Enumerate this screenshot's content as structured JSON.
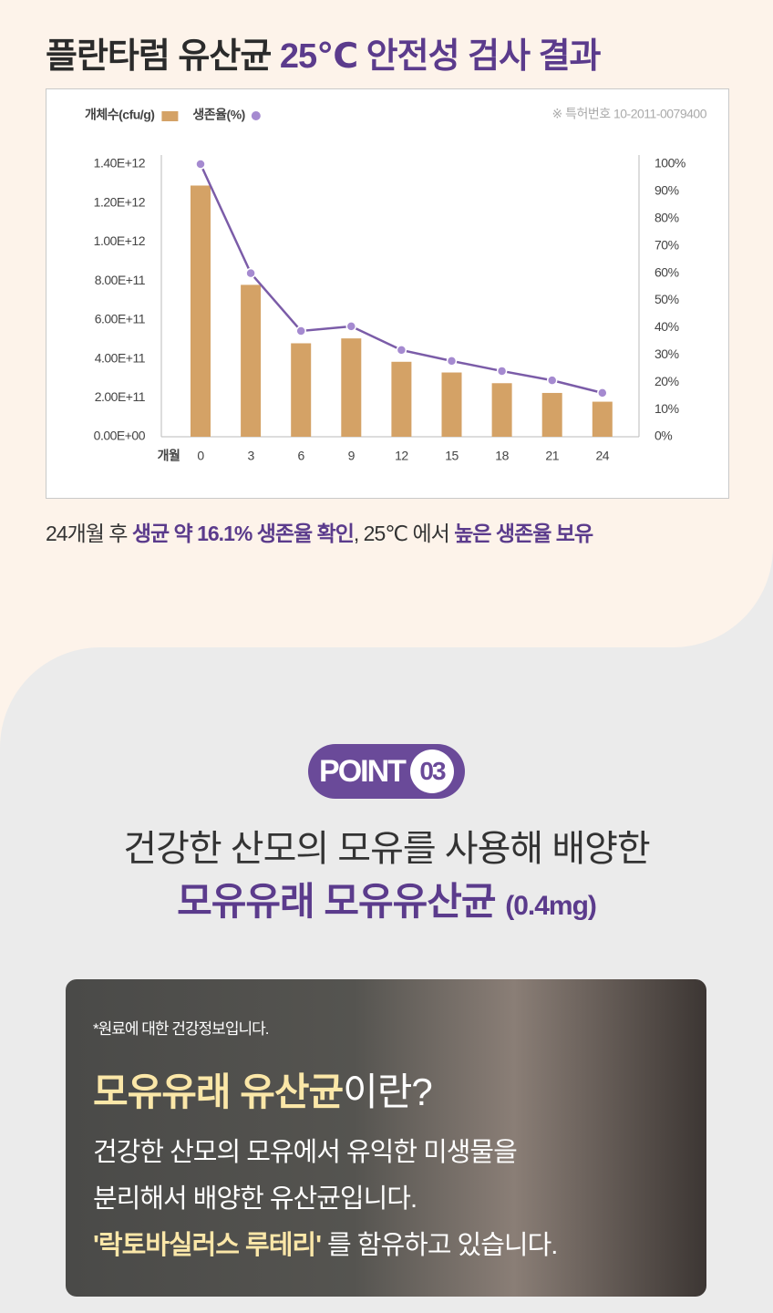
{
  "header": {
    "title_plain": "플란타럼 유산균 ",
    "title_highlight": "25℃ 안전성 검사 결과"
  },
  "chart_data": {
    "type": "bar",
    "note": "※ 특허번호 10-2011-0079400",
    "xlabel": "개월",
    "categories": [
      "0",
      "3",
      "6",
      "9",
      "12",
      "15",
      "18",
      "21",
      "24"
    ],
    "series": [
      {
        "name": "개체수(cfu/g)",
        "type": "bar",
        "color": "#d4a266",
        "values": [
          1290000000000.0,
          780000000000.0,
          480000000000.0,
          505000000000.0,
          385000000000.0,
          330000000000.0,
          275000000000.0,
          225000000000.0,
          180000000000.0
        ]
      },
      {
        "name": "생존율(%)",
        "type": "line",
        "axis": "y2",
        "color": "#7b5ca8",
        "values": [
          100,
          60,
          38.8,
          40.5,
          31.8,
          27.8,
          24.1,
          20.7,
          16.1
        ]
      }
    ],
    "ylim": [
      0,
      1400000000000.0
    ],
    "yticks": [
      {
        "value": 0,
        "label": "0.00E+00"
      },
      {
        "value": 200000000000.0,
        "label": "2.00E+11"
      },
      {
        "value": 400000000000.0,
        "label": "4.00E+11"
      },
      {
        "value": 600000000000.0,
        "label": "6.00E+11"
      },
      {
        "value": 800000000000.0,
        "label": "8.00E+11"
      },
      {
        "value": 1000000000000.0,
        "label": "1.00E+12"
      },
      {
        "value": 1200000000000.0,
        "label": "1.20E+12"
      },
      {
        "value": 1400000000000.0,
        "label": "1.40E+12"
      }
    ],
    "y2lim": [
      0,
      100
    ],
    "y2ticks": [
      {
        "value": 0,
        "label": "0%"
      },
      {
        "value": 10,
        "label": "10%"
      },
      {
        "value": 20,
        "label": "20%"
      },
      {
        "value": 30,
        "label": "30%"
      },
      {
        "value": 40,
        "label": "40%"
      },
      {
        "value": 50,
        "label": "50%"
      },
      {
        "value": 60,
        "label": "60%"
      },
      {
        "value": 70,
        "label": "70%"
      },
      {
        "value": 80,
        "label": "80%"
      },
      {
        "value": 90,
        "label": "90%"
      },
      {
        "value": 100,
        "label": "100%"
      }
    ],
    "grid": false
  },
  "caption": {
    "part1": "24개월 후 ",
    "part2": "생균 약 16.1% 생존율 확인",
    "part3": ", 25℃ 에서 ",
    "part4": "높은 생존율 보유"
  },
  "point": {
    "label": "POINT",
    "number": "03"
  },
  "headline": {
    "line1": "건강한 산모의 모유를 사용해 배양한",
    "line2_bold": "모유유래 모유유산균",
    "line2_small": "(0.4mg)"
  },
  "card": {
    "note": "*원료에 대한 건강정보입니다.",
    "title_highlight": "모유유래 유산균",
    "title_rest": "이란?",
    "body1": "건강한 산모의 모유에서 유익한 미생물을",
    "body2": "분리해서 배양한 유산균입니다.",
    "body3_bold": "'락토바실러스 루테리'",
    "body3_rest": " 를 함유하고 있습니다."
  }
}
